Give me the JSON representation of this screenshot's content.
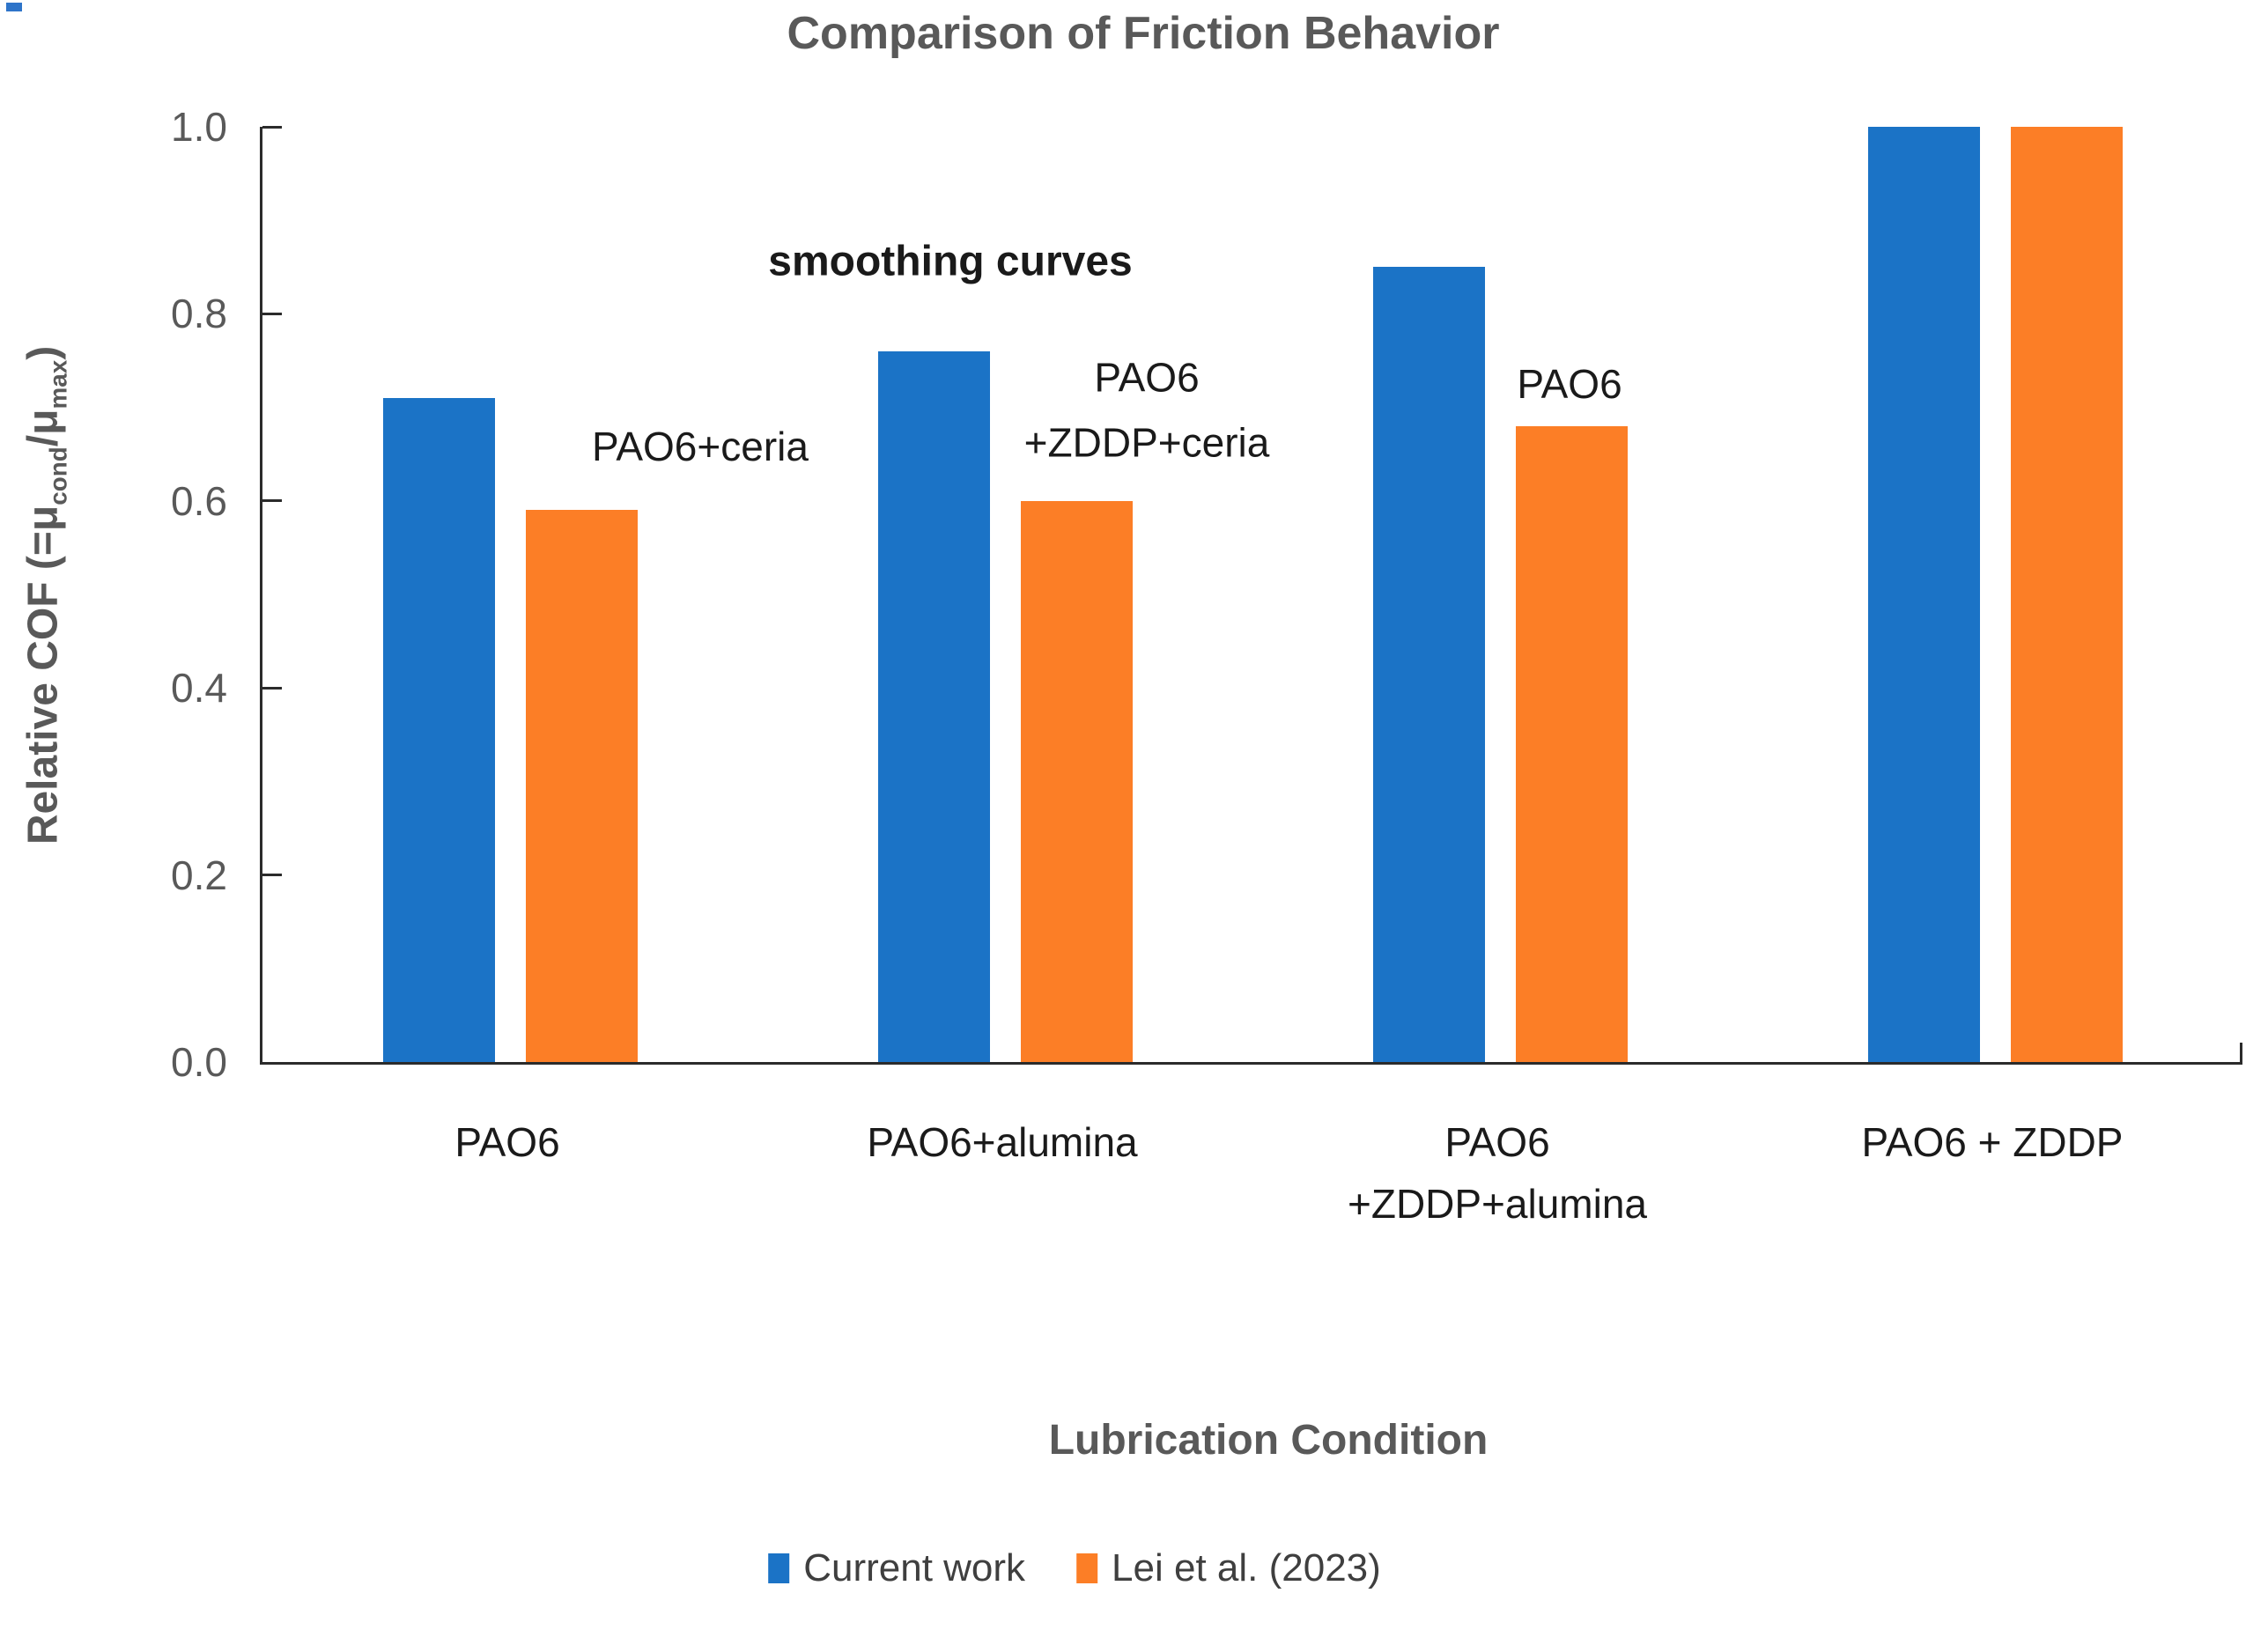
{
  "chart_data": {
    "type": "bar",
    "title": "Comparison of Friction Behavior",
    "y_axis": {
      "label": "Relative COF (=μcond/μmax)",
      "label_parts": {
        "prefix": "Relative COF (=μ",
        "sub1": "cond",
        "mid": "/μ",
        "sub2": "max",
        "suffix": ")"
      },
      "range": [
        0.0,
        1.0
      ],
      "ticks": [
        {
          "value": 0.0,
          "label": "0.0"
        },
        {
          "value": 0.2,
          "label": "0.2"
        },
        {
          "value": 0.4,
          "label": "0.4"
        },
        {
          "value": 0.6,
          "label": "0.6"
        },
        {
          "value": 0.8,
          "label": "0.8"
        },
        {
          "value": 1.0,
          "label": "1.0"
        }
      ]
    },
    "x_axis": {
      "title": "Lubrication Condition",
      "categories": [
        {
          "label": "PAO6",
          "lines": [
            "PAO6"
          ]
        },
        {
          "label": "PAO6+alumina",
          "lines": [
            "PAO6+alumina"
          ]
        },
        {
          "label": "PAO6 +ZDDP+alumina",
          "lines": [
            "PAO6",
            "+ZDDP+alumina"
          ]
        },
        {
          "label": "PAO6 + ZDDP",
          "lines": [
            "PAO6 + ZDDP"
          ]
        }
      ]
    },
    "series": [
      {
        "name": "Current work",
        "color": "#1B73C6",
        "values": [
          0.71,
          0.76,
          0.85,
          1.0
        ]
      },
      {
        "name": "Lei et al. (2023)",
        "color": "#FC7E26",
        "values": [
          0.59,
          0.6,
          0.68,
          1.0
        ]
      }
    ],
    "annotations": [
      {
        "text": "PAO6+ceria",
        "bold": false,
        "x": 795,
        "y": 508
      },
      {
        "text": "smoothing curves",
        "bold": true,
        "x": 1079,
        "y": 298
      },
      {
        "text": "PAO6\n+ZDDP+ceria",
        "bold": false,
        "x": 1302,
        "y": 466
      },
      {
        "text": "PAO6",
        "bold": false,
        "x": 1782,
        "y": 437
      }
    ],
    "legend_position": "bottom",
    "grid": false
  }
}
